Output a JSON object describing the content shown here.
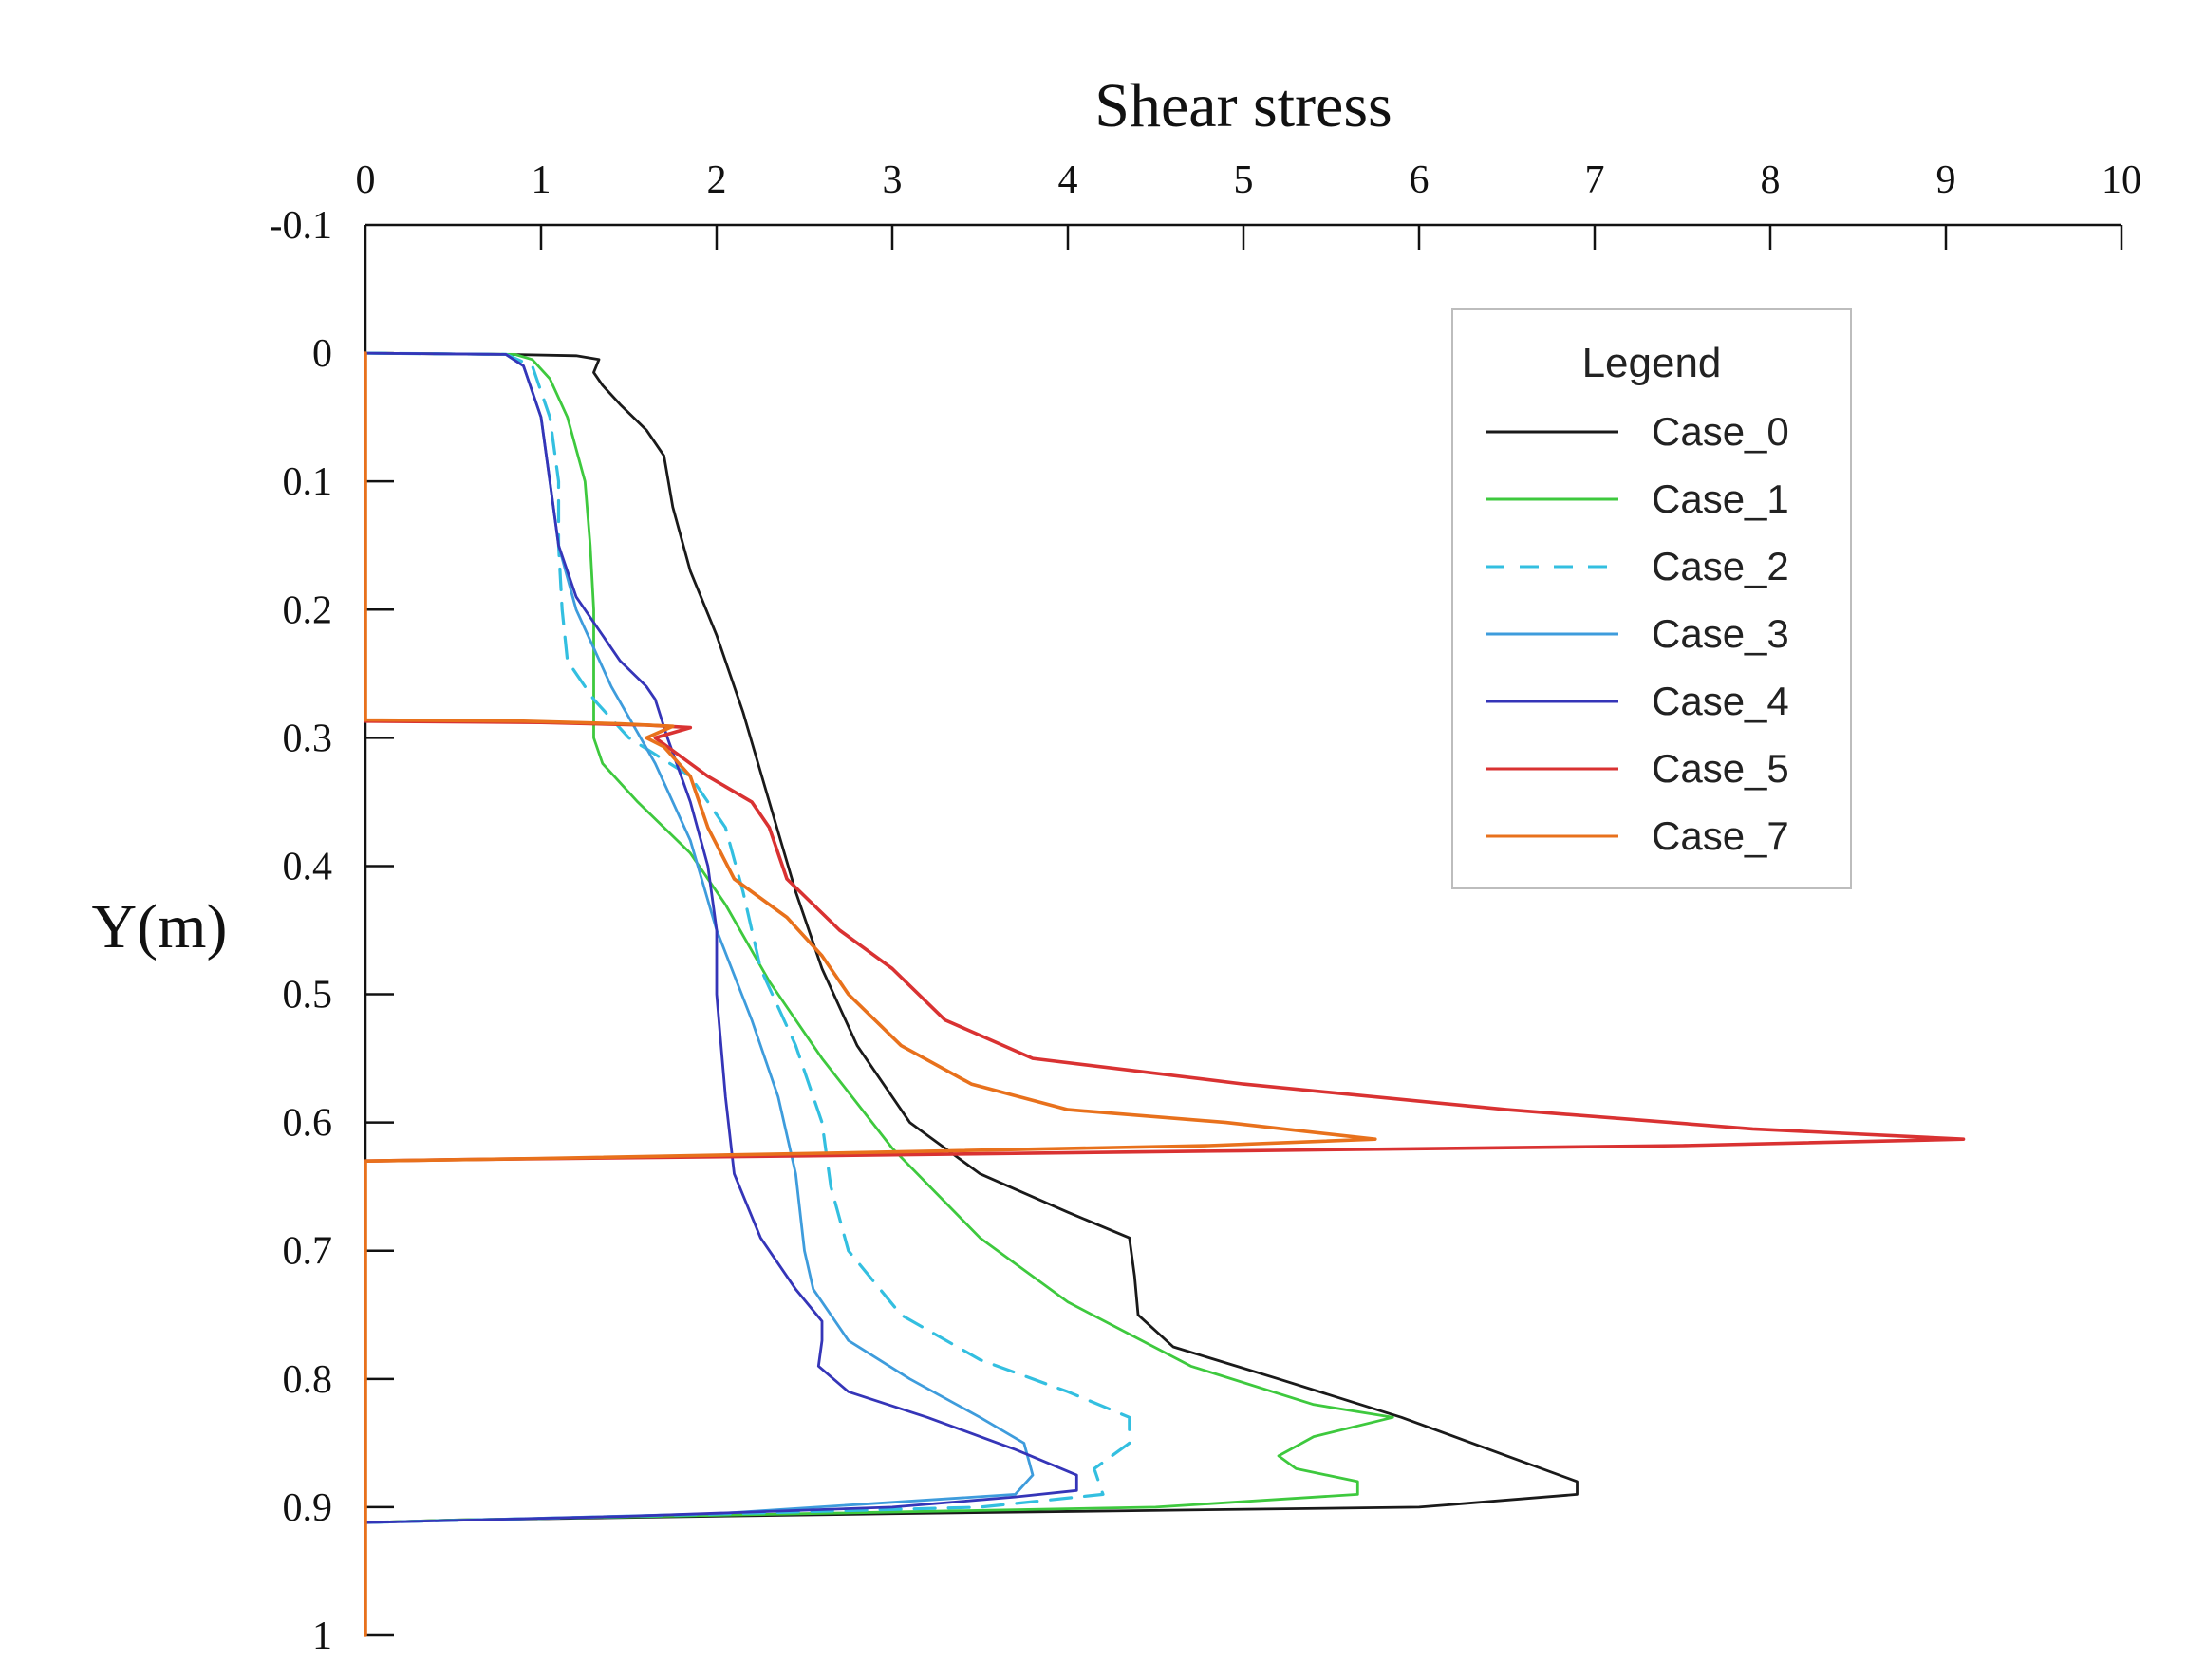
{
  "chart_data": {
    "type": "line",
    "title": "Shear stress",
    "xlabel": "Shear stress",
    "ylabel": "Y(m)",
    "xlim": [
      0,
      10
    ],
    "ylim": [
      -0.1,
      1
    ],
    "y_inverted": true,
    "x_axis_position": "top",
    "x_ticks": [
      "0",
      "1",
      "2",
      "3",
      "4",
      "5",
      "6",
      "7",
      "8",
      "9",
      "10"
    ],
    "y_ticks": [
      "-0.1",
      "0",
      "0.1",
      "0.2",
      "0.3",
      "0.4",
      "0.5",
      "0.6",
      "0.7",
      "0.8",
      "0.9",
      "1"
    ],
    "grid": false,
    "legend": {
      "title": "Legend",
      "placement": "top-right"
    },
    "series": [
      {
        "name": "Case_0",
        "color": "#1a1a1a",
        "dashed": false,
        "points": [
          [
            0,
            0
          ],
          [
            0.8,
            0.001
          ],
          [
            1.2,
            0.002
          ],
          [
            1.33,
            0.005
          ],
          [
            1.3,
            0.015
          ],
          [
            1.35,
            0.025
          ],
          [
            1.45,
            0.04
          ],
          [
            1.6,
            0.06
          ],
          [
            1.7,
            0.08
          ],
          [
            1.75,
            0.12
          ],
          [
            1.85,
            0.17
          ],
          [
            2.0,
            0.22
          ],
          [
            2.15,
            0.28
          ],
          [
            2.3,
            0.35
          ],
          [
            2.45,
            0.42
          ],
          [
            2.6,
            0.48
          ],
          [
            2.8,
            0.54
          ],
          [
            3.1,
            0.6
          ],
          [
            3.5,
            0.64
          ],
          [
            4.0,
            0.67
          ],
          [
            4.35,
            0.69
          ],
          [
            4.38,
            0.72
          ],
          [
            4.4,
            0.75
          ],
          [
            4.6,
            0.775
          ],
          [
            5.2,
            0.8
          ],
          [
            5.9,
            0.83
          ],
          [
            6.5,
            0.86
          ],
          [
            6.9,
            0.88
          ],
          [
            6.9,
            0.89
          ],
          [
            6.0,
            0.9
          ],
          [
            3.0,
            0.905
          ],
          [
            0.5,
            0.91
          ],
          [
            0,
            0.912
          ]
        ]
      },
      {
        "name": "Case_1",
        "color": "#3ec93e",
        "dashed": false,
        "points": [
          [
            0,
            0
          ],
          [
            0.85,
            0.001
          ],
          [
            0.95,
            0.005
          ],
          [
            1.05,
            0.02
          ],
          [
            1.15,
            0.05
          ],
          [
            1.25,
            0.1
          ],
          [
            1.28,
            0.15
          ],
          [
            1.3,
            0.2
          ],
          [
            1.3,
            0.25
          ],
          [
            1.3,
            0.3
          ],
          [
            1.35,
            0.32
          ],
          [
            1.55,
            0.35
          ],
          [
            1.85,
            0.39
          ],
          [
            2.05,
            0.43
          ],
          [
            2.3,
            0.49
          ],
          [
            2.6,
            0.55
          ],
          [
            3.0,
            0.62
          ],
          [
            3.5,
            0.69
          ],
          [
            4.0,
            0.74
          ],
          [
            4.7,
            0.79
          ],
          [
            5.4,
            0.82
          ],
          [
            5.85,
            0.83
          ],
          [
            5.4,
            0.845
          ],
          [
            5.2,
            0.86
          ],
          [
            5.3,
            0.87
          ],
          [
            5.65,
            0.88
          ],
          [
            5.65,
            0.89
          ],
          [
            4.5,
            0.9
          ],
          [
            2.5,
            0.905
          ],
          [
            0.5,
            0.91
          ],
          [
            0,
            0.912
          ]
        ]
      },
      {
        "name": "Case_2",
        "color": "#33bfe0",
        "dashed": true,
        "points": [
          [
            0,
            0
          ],
          [
            0.8,
            0.001
          ],
          [
            0.95,
            0.01
          ],
          [
            1.05,
            0.05
          ],
          [
            1.1,
            0.1
          ],
          [
            1.1,
            0.15
          ],
          [
            1.12,
            0.2
          ],
          [
            1.15,
            0.24
          ],
          [
            1.3,
            0.27
          ],
          [
            1.5,
            0.3
          ],
          [
            1.85,
            0.33
          ],
          [
            2.05,
            0.37
          ],
          [
            2.15,
            0.42
          ],
          [
            2.25,
            0.48
          ],
          [
            2.45,
            0.54
          ],
          [
            2.6,
            0.6
          ],
          [
            2.65,
            0.65
          ],
          [
            2.75,
            0.7
          ],
          [
            3.05,
            0.75
          ],
          [
            3.5,
            0.785
          ],
          [
            4.0,
            0.81
          ],
          [
            4.35,
            0.83
          ],
          [
            4.35,
            0.85
          ],
          [
            4.15,
            0.87
          ],
          [
            4.2,
            0.89
          ],
          [
            3.5,
            0.9
          ],
          [
            1.5,
            0.907
          ],
          [
            0,
            0.912
          ]
        ]
      },
      {
        "name": "Case_3",
        "color": "#3e9cdc",
        "dashed": false,
        "points": [
          [
            0,
            0
          ],
          [
            0.8,
            0.001
          ],
          [
            0.9,
            0.01
          ],
          [
            1.0,
            0.05
          ],
          [
            1.05,
            0.1
          ],
          [
            1.1,
            0.15
          ],
          [
            1.2,
            0.2
          ],
          [
            1.4,
            0.26
          ],
          [
            1.65,
            0.32
          ],
          [
            1.85,
            0.38
          ],
          [
            2.0,
            0.45
          ],
          [
            2.2,
            0.52
          ],
          [
            2.35,
            0.58
          ],
          [
            2.45,
            0.64
          ],
          [
            2.5,
            0.7
          ],
          [
            2.55,
            0.73
          ],
          [
            2.75,
            0.77
          ],
          [
            3.1,
            0.8
          ],
          [
            3.5,
            0.83
          ],
          [
            3.75,
            0.85
          ],
          [
            3.8,
            0.875
          ],
          [
            3.7,
            0.89
          ],
          [
            2.0,
            0.905
          ],
          [
            0,
            0.912
          ]
        ]
      },
      {
        "name": "Case_4",
        "color": "#3535b8",
        "dashed": false,
        "points": [
          [
            0,
            0
          ],
          [
            0.8,
            0.001
          ],
          [
            0.9,
            0.01
          ],
          [
            1.0,
            0.05
          ],
          [
            1.05,
            0.1
          ],
          [
            1.1,
            0.15
          ],
          [
            1.2,
            0.19
          ],
          [
            1.45,
            0.24
          ],
          [
            1.6,
            0.26
          ],
          [
            1.65,
            0.27
          ],
          [
            1.72,
            0.3
          ],
          [
            1.85,
            0.35
          ],
          [
            1.95,
            0.4
          ],
          [
            2.0,
            0.45
          ],
          [
            2.0,
            0.5
          ],
          [
            2.05,
            0.58
          ],
          [
            2.1,
            0.64
          ],
          [
            2.25,
            0.69
          ],
          [
            2.45,
            0.73
          ],
          [
            2.6,
            0.755
          ],
          [
            2.6,
            0.77
          ],
          [
            2.58,
            0.79
          ],
          [
            2.75,
            0.81
          ],
          [
            3.2,
            0.83
          ],
          [
            3.7,
            0.855
          ],
          [
            4.05,
            0.875
          ],
          [
            4.05,
            0.887
          ],
          [
            3.7,
            0.892
          ],
          [
            3.0,
            0.9
          ],
          [
            1.5,
            0.907
          ],
          [
            0,
            0.912
          ]
        ]
      },
      {
        "name": "Case_5",
        "color": "#d93232",
        "dashed": false,
        "points": [
          [
            0,
            0.287
          ],
          [
            1.0,
            0.288
          ],
          [
            1.6,
            0.29
          ],
          [
            1.85,
            0.292
          ],
          [
            1.65,
            0.3
          ],
          [
            1.7,
            0.305
          ],
          [
            1.95,
            0.33
          ],
          [
            2.2,
            0.35
          ],
          [
            2.3,
            0.37
          ],
          [
            2.4,
            0.41
          ],
          [
            2.7,
            0.45
          ],
          [
            3.0,
            0.48
          ],
          [
            3.3,
            0.52
          ],
          [
            3.8,
            0.55
          ],
          [
            5.0,
            0.57
          ],
          [
            6.5,
            0.59
          ],
          [
            7.9,
            0.605
          ],
          [
            9.1,
            0.613
          ],
          [
            7.5,
            0.618
          ],
          [
            5.0,
            0.622
          ],
          [
            2.5,
            0.626
          ],
          [
            0.5,
            0.629
          ],
          [
            0,
            0.63
          ]
        ]
      },
      {
        "name": "Case_7",
        "color": "#e8711c",
        "dashed": false,
        "points": [
          [
            0,
            0
          ],
          [
            0,
            0.286
          ],
          [
            0.9,
            0.287
          ],
          [
            1.45,
            0.289
          ],
          [
            1.75,
            0.291
          ],
          [
            1.6,
            0.3
          ],
          [
            1.7,
            0.307
          ],
          [
            1.85,
            0.33
          ],
          [
            1.95,
            0.37
          ],
          [
            2.1,
            0.41
          ],
          [
            2.4,
            0.44
          ],
          [
            2.6,
            0.47
          ],
          [
            2.75,
            0.5
          ],
          [
            3.05,
            0.54
          ],
          [
            3.45,
            0.57
          ],
          [
            4.0,
            0.59
          ],
          [
            4.9,
            0.6
          ],
          [
            5.75,
            0.613
          ],
          [
            4.8,
            0.618
          ],
          [
            3.0,
            0.623
          ],
          [
            1.0,
            0.628
          ],
          [
            0,
            0.63
          ],
          [
            0,
            1
          ]
        ]
      }
    ]
  }
}
